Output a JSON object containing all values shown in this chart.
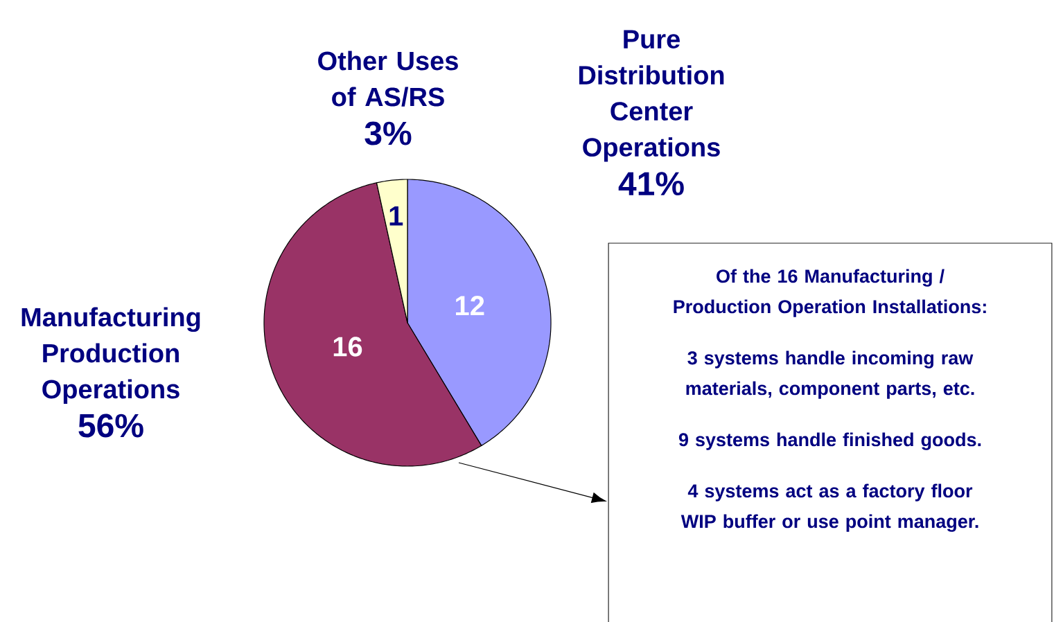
{
  "chart_data": {
    "type": "pie",
    "categories": [
      "Pure Distribution Center Operations",
      "Manufacturing Production Operations",
      "Other Uses of AS/RS"
    ],
    "values": [
      12,
      16,
      1
    ],
    "colors": [
      "#9999ff",
      "#993366",
      "#ffffcc"
    ],
    "data_labels": true,
    "legend": false,
    "annotations": [
      "41%",
      "56%",
      "3%",
      "Of the 16 Manufacturing / Production Operation Installations:",
      "3 systems handle incoming raw materials, component parts, etc.",
      "9 systems handle finished goods.",
      "4 systems act as a factory floor WIP buffer or use point manager."
    ]
  }
}
